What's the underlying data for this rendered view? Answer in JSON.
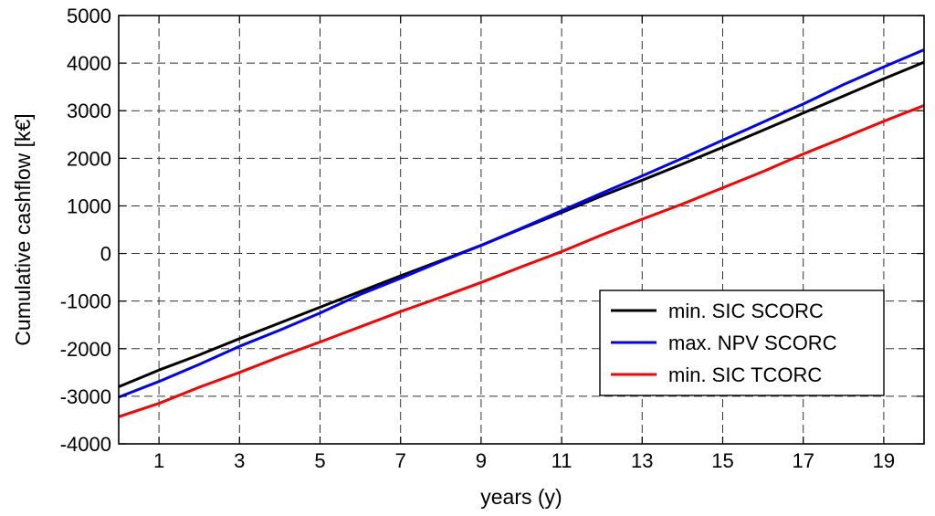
{
  "chart_data": {
    "type": "line",
    "xlabel": "years (y)",
    "ylabel": "Cumulative cashflow [k€]",
    "xlim": [
      0,
      20
    ],
    "ylim": [
      -4000,
      5000
    ],
    "xticks": [
      1,
      3,
      5,
      7,
      9,
      11,
      13,
      15,
      17,
      19
    ],
    "xtick_labels": [
      "1",
      "3",
      "5",
      "7",
      "9",
      "11",
      "13",
      "15",
      "17",
      "19"
    ],
    "yticks": [
      -4000,
      -3000,
      -2000,
      -1000,
      0,
      1000,
      2000,
      3000,
      4000,
      5000
    ],
    "ytick_labels": [
      "-4000",
      "-3000",
      "-2000",
      "-1000",
      "0",
      "1000",
      "2000",
      "3000",
      "4000",
      "5000"
    ],
    "grid": true,
    "legend_position": "lower-right",
    "series": [
      {
        "name": "min. SIC SCORC",
        "color": "#000000",
        "x": [
          0,
          1,
          2,
          3,
          4,
          5,
          6,
          7,
          8,
          9,
          10,
          11,
          12,
          13,
          14,
          15,
          16,
          17,
          18,
          19,
          20
        ],
        "y": [
          -2800,
          -2450,
          -2130,
          -1790,
          -1460,
          -1130,
          -800,
          -470,
          -150,
          170,
          520,
          860,
          1210,
          1540,
          1880,
          2230,
          2590,
          2950,
          3310,
          3670,
          4020
        ]
      },
      {
        "name": "max. NPV SCORC",
        "color": "#0000ff",
        "x": [
          0,
          1,
          2,
          3,
          4,
          5,
          6,
          7,
          8,
          9,
          10,
          11,
          12,
          13,
          14,
          15,
          16,
          17,
          18,
          19,
          20
        ],
        "y": [
          -3020,
          -2690,
          -2330,
          -1950,
          -1610,
          -1250,
          -860,
          -520,
          -170,
          170,
          530,
          900,
          1270,
          1630,
          2000,
          2380,
          2760,
          3140,
          3550,
          3920,
          4280
        ]
      },
      {
        "name": "min. SIC TCORC",
        "color": "#ff0000",
        "x": [
          0,
          1,
          2,
          3,
          4,
          5,
          6,
          7,
          8,
          9,
          10,
          11,
          12,
          13,
          14,
          15,
          16,
          17,
          18,
          19,
          20
        ],
        "y": [
          -3430,
          -3150,
          -2810,
          -2500,
          -2170,
          -1860,
          -1540,
          -1220,
          -920,
          -610,
          -280,
          40,
          390,
          720,
          1040,
          1380,
          1720,
          2090,
          2430,
          2780,
          3110
        ]
      }
    ]
  }
}
